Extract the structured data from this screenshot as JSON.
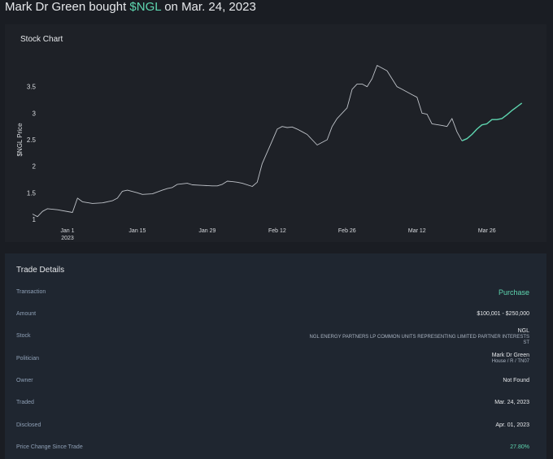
{
  "headline": {
    "prefix": "Mark Dr Green bought ",
    "ticker": "$NGL",
    "suffix": " on Mar. 24, 2023"
  },
  "colors": {
    "accent": "#5ed6b0",
    "line": "#bfc3c9",
    "background": "#1a1d23"
  },
  "chart_data": {
    "type": "line",
    "title": "Stock Chart",
    "ylabel": "$NGL Price",
    "xlabel": "",
    "ylim": [
      1,
      4
    ],
    "yticks": [
      {
        "value": 1,
        "label": "1"
      },
      {
        "value": 1.5,
        "label": "1.5"
      },
      {
        "value": 2,
        "label": "2"
      },
      {
        "value": 2.5,
        "label": "2.5"
      },
      {
        "value": 3,
        "label": "3"
      },
      {
        "value": 3.5,
        "label": "3.5"
      }
    ],
    "xlim": [
      -7,
      93
    ],
    "xticks": [
      {
        "value": 0,
        "label": "Jan 1",
        "label2": "2023"
      },
      {
        "value": 14,
        "label": "Jan 15",
        "label2": ""
      },
      {
        "value": 28,
        "label": "Jan 29",
        "label2": ""
      },
      {
        "value": 42,
        "label": "Feb 12",
        "label2": ""
      },
      {
        "value": 56,
        "label": "Feb 26",
        "label2": ""
      },
      {
        "value": 70,
        "label": "Mar 12",
        "label2": ""
      },
      {
        "value": 84,
        "label": "Mar 26",
        "label2": ""
      }
    ],
    "series": [
      {
        "name": "before-trade",
        "x": [
          -7,
          -6,
          -5,
          -4,
          -2,
          1,
          2,
          3,
          5,
          7,
          9,
          10,
          11,
          12,
          14,
          15,
          17,
          19,
          20,
          21,
          22,
          24,
          25,
          27,
          29,
          30,
          31,
          32,
          33,
          34,
          35,
          37,
          38,
          39,
          41,
          42,
          43,
          44,
          45,
          46,
          47,
          48,
          50,
          52,
          53,
          54,
          56,
          57,
          58,
          59,
          60,
          61,
          62,
          64,
          66,
          67,
          69,
          70,
          71,
          72,
          73,
          75,
          76,
          77,
          78,
          79
        ],
        "values": [
          1.1,
          1.05,
          1.15,
          1.2,
          1.18,
          1.13,
          1.4,
          1.33,
          1.3,
          1.31,
          1.35,
          1.4,
          1.53,
          1.55,
          1.5,
          1.47,
          1.48,
          1.55,
          1.58,
          1.6,
          1.66,
          1.68,
          1.65,
          1.64,
          1.63,
          1.63,
          1.66,
          1.72,
          1.71,
          1.7,
          1.68,
          1.62,
          1.7,
          2.05,
          2.48,
          2.7,
          2.75,
          2.73,
          2.74,
          2.7,
          2.65,
          2.6,
          2.4,
          2.5,
          2.75,
          2.9,
          3.1,
          3.45,
          3.55,
          3.55,
          3.5,
          3.65,
          3.9,
          3.8,
          3.5,
          3.45,
          3.35,
          3.3,
          3.0,
          2.98,
          2.8,
          2.77,
          2.75,
          2.9,
          2.65,
          2.48
        ]
      },
      {
        "name": "since-trade",
        "x": [
          79,
          80,
          81,
          82,
          83,
          84,
          85,
          86,
          87,
          88,
          89,
          90,
          91
        ],
        "values": [
          2.48,
          2.52,
          2.6,
          2.7,
          2.78,
          2.8,
          2.88,
          2.88,
          2.9,
          2.97,
          3.05,
          3.12,
          3.19
        ]
      }
    ]
  },
  "details": {
    "title": "Trade Details",
    "transaction": {
      "label": "Transaction",
      "value": "Purchase"
    },
    "amount": {
      "label": "Amount",
      "value": "$100,001 - $250,000"
    },
    "stock": {
      "label": "Stock",
      "ticker": "NGL",
      "name_line1": "NGL ENERGY PARTNERS LP COMMON UNITS REPRESENTING LIMITED PARTNER INTERESTS",
      "name_line2": "ST"
    },
    "politician": {
      "label": "Politician",
      "name": "Mark Dr Green",
      "office": "House / R / TN07"
    },
    "owner": {
      "label": "Owner",
      "value": "Not Found"
    },
    "traded": {
      "label": "Traded",
      "value": "Mar. 24, 2023"
    },
    "disclosed": {
      "label": "Disclosed",
      "value": "Apr. 01, 2023"
    },
    "price_change": {
      "label": "Price Change Since Trade",
      "value": "27.80%"
    }
  }
}
